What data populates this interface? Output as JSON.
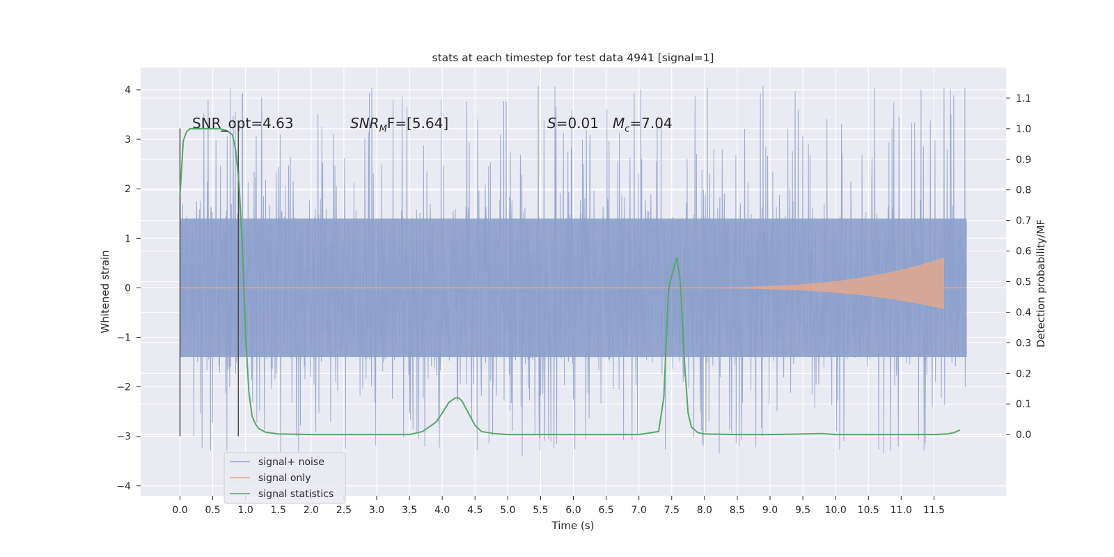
{
  "chart_data": {
    "type": "line",
    "title": "stats at each timestep for test data 4941 [signal=1]",
    "xlabel": "Time (s)",
    "ylabel": "Whitened strain",
    "ylabel_right": "Detection probability/MF",
    "xlim": [
      -0.6,
      12.6
    ],
    "ylim": [
      -4.2,
      4.45
    ],
    "ylim_right": [
      -0.2,
      1.2
    ],
    "x_ticks": [
      0.0,
      0.5,
      1.0,
      1.5,
      2.0,
      2.5,
      3.0,
      3.5,
      4.0,
      4.5,
      5.0,
      5.5,
      6.0,
      6.5,
      7.0,
      7.5,
      8.0,
      8.5,
      9.0,
      9.5,
      10.0,
      10.5,
      11.0,
      11.5
    ],
    "x_tick_labels": [
      "0.0",
      "0.5",
      "1.0",
      "1.5",
      "2.0",
      "2.5",
      "3.0",
      "3.5",
      "4.0",
      "4.5",
      "5.0",
      "5.5",
      "6.0",
      "6.5",
      "7.0",
      "7.5",
      "8.0",
      "8.5",
      "9.0",
      "9.5",
      "10.0",
      "10.5",
      "11.0",
      "11.5"
    ],
    "y_ticks": [
      -4,
      -3,
      -2,
      -1,
      0,
      1,
      2,
      3,
      4
    ],
    "y_tick_labels": [
      "−4",
      "−3",
      "−2",
      "−1",
      "0",
      "1",
      "2",
      "3",
      "4"
    ],
    "y_ticks_right": [
      0.0,
      0.1,
      0.2,
      0.3,
      0.4,
      0.5,
      0.6,
      0.7,
      0.8,
      0.9,
      1.0,
      1.1
    ],
    "y_tick_labels_right": [
      "0.0",
      "0.1",
      "0.2",
      "0.3",
      "0.4",
      "0.5",
      "0.6",
      "0.7",
      "0.8",
      "0.9",
      "1.0",
      "1.1"
    ],
    "grid": true,
    "legend_position": "lower-left",
    "series": [
      {
        "name": "signal+ noise",
        "color": "#8da0cb",
        "kind": "noise",
        "x_range": [
          0,
          12.0
        ],
        "band": [
          -1.4,
          1.4
        ],
        "spike_max": 4.1,
        "spike_min": -3.4
      },
      {
        "name": "signal only",
        "color": "#e0a88e",
        "kind": "chirp",
        "x_start": 7.3,
        "x_end": 11.65,
        "peak_amplitude": 0.6
      },
      {
        "name": "signal statistics",
        "color": "#55a868",
        "kind": "line",
        "x": [
          0.0,
          0.05,
          0.1,
          0.15,
          0.2,
          0.3,
          0.4,
          0.5,
          0.6,
          0.7,
          0.8,
          0.85,
          0.9,
          0.95,
          1.0,
          1.05,
          1.1,
          1.15,
          1.2,
          1.3,
          1.5,
          2.0,
          3.0,
          3.5,
          3.7,
          3.9,
          4.0,
          4.1,
          4.2,
          4.25,
          4.3,
          4.4,
          4.5,
          4.6,
          4.8,
          5.0,
          6.0,
          7.0,
          7.3,
          7.38,
          7.45,
          7.5,
          7.58,
          7.63,
          7.7,
          7.75,
          7.8,
          7.9,
          8.0,
          8.5,
          9.0,
          9.8,
          10.0,
          11.0,
          11.5,
          11.7,
          11.8,
          11.9
        ],
        "y": [
          0.78,
          0.96,
          0.99,
          1.0,
          1.0,
          1.0,
          1.0,
          1.0,
          1.0,
          0.995,
          0.98,
          0.93,
          0.82,
          0.62,
          0.33,
          0.14,
          0.06,
          0.035,
          0.02,
          0.008,
          0.002,
          0.0,
          0.0,
          0.0,
          0.01,
          0.04,
          0.07,
          0.105,
          0.12,
          0.12,
          0.11,
          0.07,
          0.03,
          0.01,
          0.003,
          0.0,
          0.0,
          0.0,
          0.01,
          0.12,
          0.47,
          0.52,
          0.58,
          0.5,
          0.22,
          0.07,
          0.025,
          0.006,
          0.002,
          0.0,
          0.0,
          0.003,
          0.0,
          0.0,
          0.0,
          0.002,
          0.006,
          0.015
        ]
      }
    ],
    "vertical_markers": [
      0.0,
      0.89
    ],
    "annotations": {
      "snr_opt": "SNR_opt=4.63",
      "snr_mf_prefix": "SNR",
      "snr_mf_sub": "M",
      "snr_mf_suffix": "F=[5.64]",
      "s_label": "S",
      "s_value": "=0.01",
      "mc_label": "M",
      "mc_sub": "c",
      "mc_value": "=7.04"
    }
  }
}
